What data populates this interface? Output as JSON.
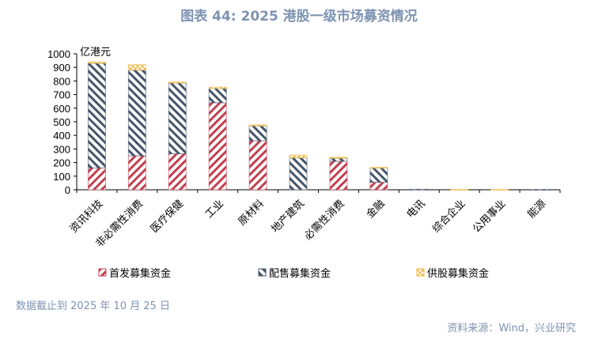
{
  "title": "图表 44: 2025 港股一级市场募资情况",
  "note": "数据截止到 2025 年 10 月 25 日",
  "source": "资料来源：Wind，兴业研究",
  "chart_data": {
    "type": "bar",
    "stacked": true,
    "unit_label": "亿港元",
    "categories": [
      "资讯科技",
      "非必需性消费",
      "医疗保健",
      "工业",
      "原材料",
      "地产建筑",
      "必需性消费",
      "金融",
      "电讯",
      "综合企业",
      "公用事业",
      "能源"
    ],
    "series": [
      {
        "name": "首发募集资金",
        "color": "#c0404f",
        "values": [
          160,
          250,
          265,
          640,
          360,
          0,
          210,
          55,
          0,
          0,
          0,
          0
        ]
      },
      {
        "name": "配售募集资金",
        "color": "#44546a",
        "values": [
          770,
          630,
          520,
          105,
          110,
          235,
          22,
          105,
          4,
          0,
          0,
          2
        ]
      },
      {
        "name": "供股募集资金",
        "color": "#f0b840",
        "values": [
          10,
          40,
          8,
          10,
          8,
          20,
          8,
          5,
          0,
          3,
          3,
          0
        ]
      }
    ],
    "ylim": [
      0,
      1000
    ],
    "yticks": [
      0,
      100,
      200,
      300,
      400,
      500,
      600,
      700,
      800,
      900,
      1000
    ],
    "grid": false,
    "legend": "bottom"
  }
}
